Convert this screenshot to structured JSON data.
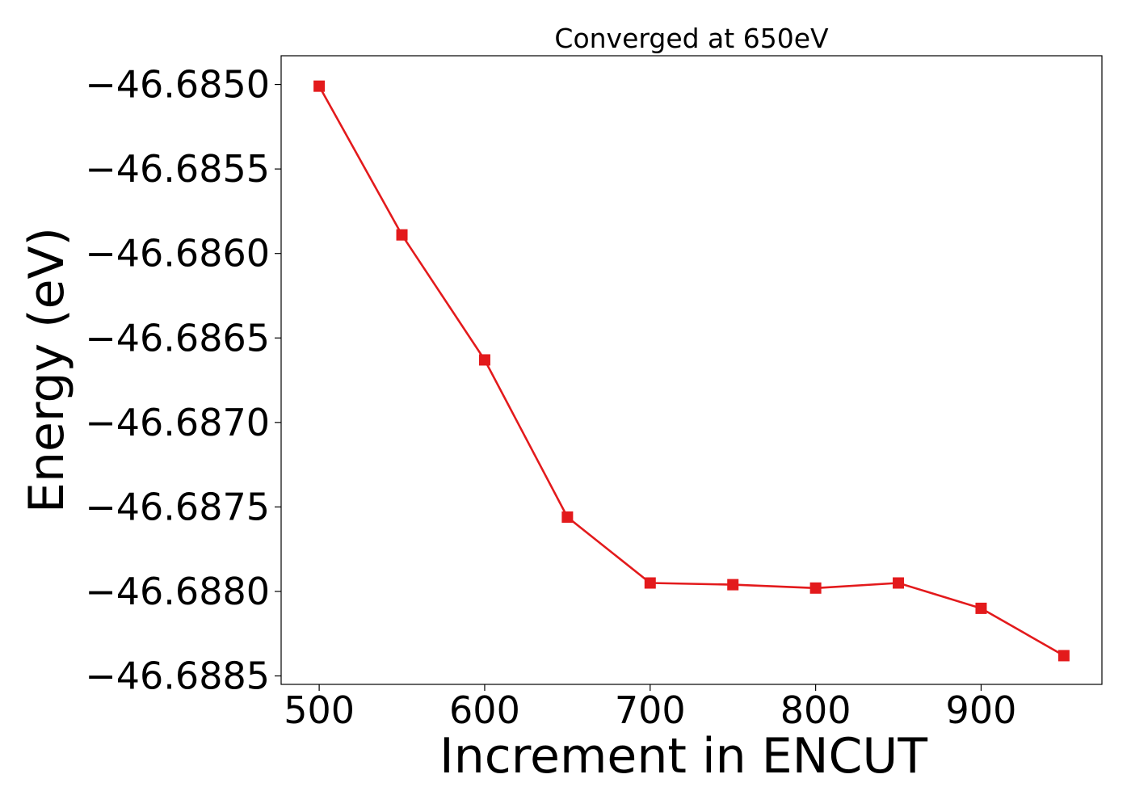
{
  "chart_data": {
    "type": "line",
    "title": "Converged at 650eV",
    "xlabel": "Increment in ENCUT",
    "ylabel": "Energy (eV)",
    "xlim": [
      477,
      973
    ],
    "ylim": [
      -46.68855,
      -46.68483
    ],
    "x_ticks": [
      500,
      600,
      700,
      800,
      900
    ],
    "x_tick_labels": [
      "500",
      "600",
      "700",
      "800",
      "900"
    ],
    "y_ticks": [
      -46.685,
      -46.6855,
      -46.686,
      -46.6865,
      -46.687,
      -46.6875,
      -46.688,
      -46.6885
    ],
    "y_tick_labels": [
      "−46.6850",
      "−46.6855",
      "−46.6860",
      "−46.6865",
      "−46.6870",
      "−46.6875",
      "−46.6880",
      "−46.6885"
    ],
    "grid": false,
    "series": [
      {
        "color": "#e31a1c",
        "marker": "square",
        "x": [
          500,
          550,
          600,
          650,
          700,
          750,
          800,
          850,
          900,
          950
        ],
        "y": [
          -46.68501,
          -46.68589,
          -46.68663,
          -46.68756,
          -46.68795,
          -46.68796,
          -46.68798,
          -46.68795,
          -46.6881,
          -46.68838
        ]
      }
    ]
  }
}
